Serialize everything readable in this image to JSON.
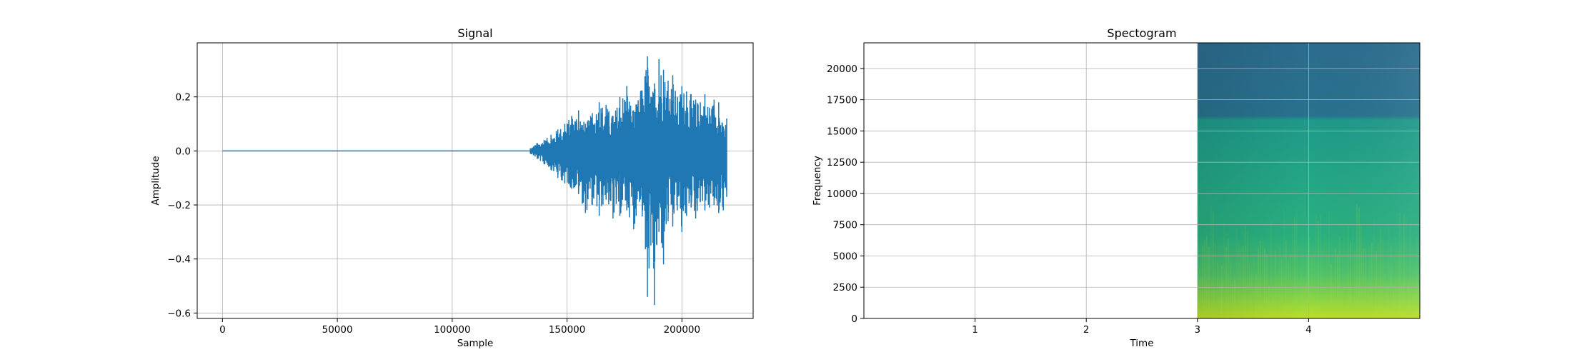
{
  "chart_data": [
    {
      "type": "line",
      "title": "Signal",
      "xlabel": "Sample",
      "ylabel": "Amplitude",
      "xlim": [
        -11000,
        231000
      ],
      "ylim": [
        -0.62,
        0.4
      ],
      "grid": true,
      "color": "#1f77b4",
      "x_ticks": [
        {
          "value": 0,
          "label": "0"
        },
        {
          "value": 50000,
          "label": "50000"
        },
        {
          "value": 100000,
          "label": "100000"
        },
        {
          "value": 150000,
          "label": "150000"
        },
        {
          "value": 200000,
          "label": "200000"
        }
      ],
      "y_ticks": [
        {
          "value": 0.2,
          "label": "0.2"
        },
        {
          "value": 0.0,
          "label": "0.0"
        },
        {
          "value": -0.2,
          "label": "−0.2"
        },
        {
          "value": -0.4,
          "label": "−0.4"
        },
        {
          "value": -0.6,
          "label": "−0.6"
        }
      ],
      "series": [
        {
          "x": [
            0,
            134000,
            137000,
            140000,
            143000,
            146000,
            149000,
            152000,
            155000,
            158000,
            161000,
            164000,
            167000,
            170000,
            173000,
            176000,
            179000,
            182000,
            185000,
            186500,
            188000,
            190000,
            192000,
            194000,
            196000,
            198000,
            200000,
            202000,
            204000,
            206000,
            208000,
            210000,
            212000,
            214000,
            216000,
            218000,
            219500
          ],
          "max": [
            0,
            0.01,
            0.03,
            0.04,
            0.06,
            0.08,
            0.1,
            0.13,
            0.15,
            0.1,
            0.14,
            0.18,
            0.17,
            0.13,
            0.2,
            0.24,
            0.15,
            0.22,
            0.35,
            0.2,
            0.25,
            0.34,
            0.3,
            0.26,
            0.28,
            0.2,
            0.24,
            0.22,
            0.21,
            0.19,
            0.18,
            0.21,
            0.16,
            0.19,
            0.18,
            0.09,
            0.12
          ],
          "min": [
            0,
            -0.01,
            -0.03,
            -0.05,
            -0.07,
            -0.1,
            -0.12,
            -0.14,
            -0.16,
            -0.23,
            -0.2,
            -0.24,
            -0.18,
            -0.25,
            -0.24,
            -0.22,
            -0.29,
            -0.18,
            -0.54,
            -0.35,
            -0.57,
            -0.3,
            -0.42,
            -0.26,
            -0.28,
            -0.22,
            -0.3,
            -0.24,
            -0.21,
            -0.25,
            -0.19,
            -0.22,
            -0.21,
            -0.2,
            -0.23,
            -0.22,
            -0.17
          ]
        }
      ]
    },
    {
      "type": "heatmap",
      "title": "Spectogram",
      "xlabel": "Time",
      "ylabel": "Frequency",
      "xlim": [
        0,
        5
      ],
      "ylim": [
        0,
        22050
      ],
      "grid": true,
      "colormap": "viridis",
      "signal_start_time": 3.0,
      "band_edge_hz": 16200,
      "x_ticks": [
        {
          "value": 1,
          "label": "1"
        },
        {
          "value": 2,
          "label": "2"
        },
        {
          "value": 3,
          "label": "3"
        },
        {
          "value": 4,
          "label": "4"
        }
      ],
      "y_ticks": [
        {
          "value": 0,
          "label": "0"
        },
        {
          "value": 2500,
          "label": "2500"
        },
        {
          "value": 5000,
          "label": "5000"
        },
        {
          "value": 7500,
          "label": "7500"
        },
        {
          "value": 10000,
          "label": "10000"
        },
        {
          "value": 12500,
          "label": "12500"
        },
        {
          "value": 15000,
          "label": "15000"
        },
        {
          "value": 17500,
          "label": "17500"
        },
        {
          "value": 20000,
          "label": "20000"
        }
      ],
      "colors": {
        "low": "#2d6e8e",
        "mid": "#1f9a8a",
        "mid_high": "#35b779",
        "high": "#bddf26"
      }
    }
  ]
}
